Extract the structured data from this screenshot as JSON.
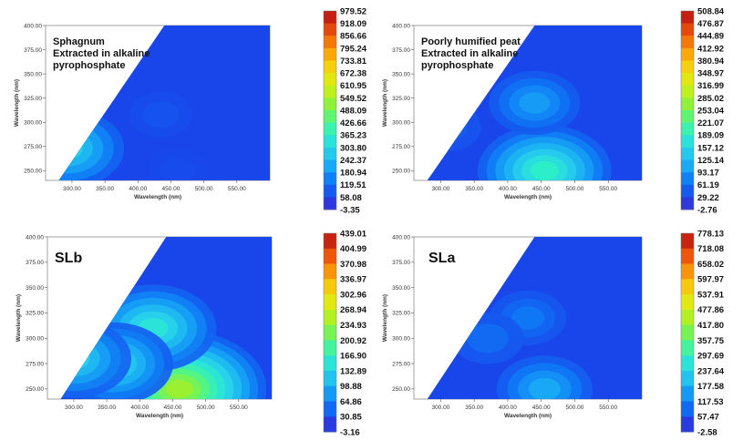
{
  "chart_data": [
    {
      "type": "heatmap",
      "annotation": [
        "Sphagnum",
        "Extracted in alkaline",
        "pyrophosphate"
      ],
      "xlabel": "Wavelength (nm)",
      "ylabel": "Wavelength (nm)",
      "xticks": [
        "300.00",
        "350.00",
        "400.00",
        "450.00",
        "500.00",
        "550.00"
      ],
      "yticks": [
        "400.00",
        "375.00",
        "350.00",
        "325.00",
        "300.00",
        "275.00",
        "250.00"
      ],
      "xlim": [
        260,
        600
      ],
      "ylim": [
        240,
        400
      ],
      "colorbar": [
        "979.52",
        "918.09",
        "856.66",
        "795.24",
        "733.81",
        "672.38",
        "610.95",
        "549.52",
        "488.09",
        "426.66",
        "365.23",
        "303.80",
        "242.37",
        "180.94",
        "119.51",
        "58.08",
        "-3.35"
      ],
      "peaks": [
        {
          "x": 292,
          "y": 273,
          "level": 0.3
        },
        {
          "x": 435,
          "y": 308,
          "level": 0.08
        },
        {
          "x": 460,
          "y": 250,
          "level": 0.07
        }
      ]
    },
    {
      "type": "heatmap",
      "annotation": [
        "Poorly humified peat",
        "Extracted in alkaline",
        "pyrophosphate"
      ],
      "xlabel": "Wavelength (nm)",
      "ylabel": "Wavelength (nm)",
      "xticks": [
        "300.00",
        "350.00",
        "400.00",
        "450.00",
        "500.00",
        "550.00"
      ],
      "yticks": [
        "400.00",
        "375.00",
        "350.00",
        "325.00",
        "300.00",
        "275.00",
        "250.00"
      ],
      "xlim": [
        260,
        600
      ],
      "ylim": [
        240,
        400
      ],
      "colorbar": [
        "508.84",
        "476.87",
        "444.89",
        "412.92",
        "380.94",
        "348.97",
        "316.99",
        "285.02",
        "253.04",
        "221.07",
        "189.09",
        "157.12",
        "125.14",
        "93.17",
        "61.19",
        "29.22",
        "-2.76"
      ],
      "peaks": [
        {
          "x": 455,
          "y": 250,
          "level": 0.38
        },
        {
          "x": 440,
          "y": 320,
          "level": 0.2
        },
        {
          "x": 310,
          "y": 295,
          "level": 0.1
        }
      ]
    },
    {
      "type": "heatmap",
      "annotation": [
        "SLb"
      ],
      "xlabel": "Wavelength (nm)",
      "ylabel": "Wavelength (nm)",
      "xticks": [
        "300.00",
        "350.00",
        "400.00",
        "450.00",
        "500.00",
        "550.00"
      ],
      "yticks": [
        "400.00",
        "375.00",
        "350.00",
        "325.00",
        "300.00",
        "275.00",
        "250.00"
      ],
      "xlim": [
        260,
        600
      ],
      "ylim": [
        240,
        400
      ],
      "colorbar": [
        "439.01",
        "404.99",
        "370.98",
        "336.97",
        "302.96",
        "268.94",
        "234.93",
        "200.92",
        "166.90",
        "132.89",
        "98.88",
        "64.86",
        "30.85",
        "-3.16"
      ],
      "peaks": [
        {
          "x": 460,
          "y": 250,
          "level": 0.55
        },
        {
          "x": 420,
          "y": 310,
          "level": 0.35
        },
        {
          "x": 360,
          "y": 275,
          "level": 0.32
        },
        {
          "x": 300,
          "y": 280,
          "level": 0.3
        }
      ]
    },
    {
      "type": "heatmap",
      "annotation": [
        "SLa"
      ],
      "xlabel": "Wavelength (nm)",
      "ylabel": "Wavelength (nm)",
      "xticks": [
        "300.00",
        "350.00",
        "400.00",
        "450.00",
        "500.00",
        "550.00"
      ],
      "yticks": [
        "400.00",
        "375.00",
        "350.00",
        "325.00",
        "300.00",
        "275.00",
        "250.00"
      ],
      "xlim": [
        260,
        600
      ],
      "ylim": [
        240,
        400
      ],
      "colorbar": [
        "778.13",
        "718.08",
        "658.02",
        "597.97",
        "537.91",
        "477.86",
        "417.80",
        "357.75",
        "297.69",
        "237.64",
        "177.58",
        "117.53",
        "57.47",
        "-2.58"
      ],
      "peaks": [
        {
          "x": 455,
          "y": 250,
          "level": 0.22
        },
        {
          "x": 430,
          "y": 320,
          "level": 0.14
        },
        {
          "x": 370,
          "y": 300,
          "level": 0.12
        }
      ]
    }
  ]
}
